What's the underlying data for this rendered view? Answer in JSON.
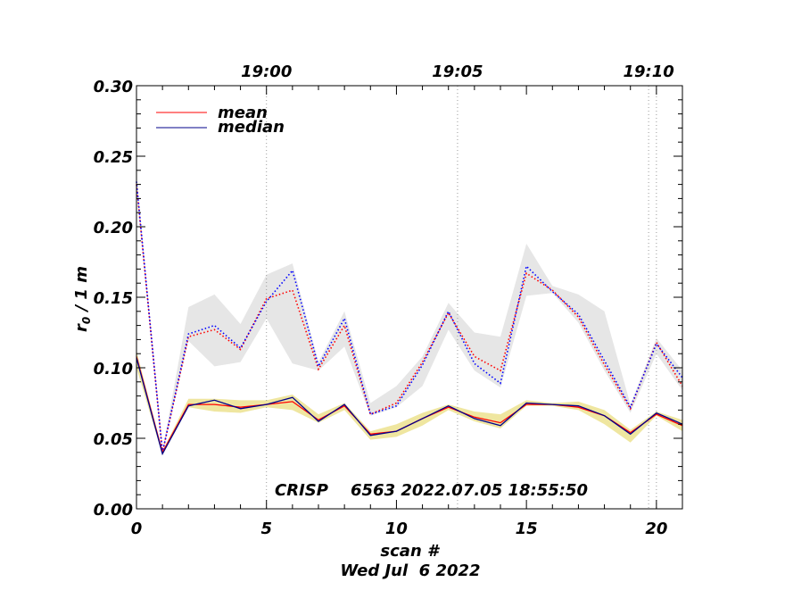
{
  "chart_data": {
    "type": "line",
    "xlabel": "scan #",
    "ylabel_main": "r",
    "ylabel_sub": "0",
    "ylabel_rest": " / 1 m",
    "date_label": "Wed Jul  6 2022",
    "annotation": "CRISP    6563 2022.07.05 18:55:50",
    "xlim": [
      0,
      21
    ],
    "ylim": [
      0,
      0.3
    ],
    "x_ticks": [
      0,
      5,
      10,
      15,
      20
    ],
    "x_tick_labels": [
      "0",
      "5",
      "10",
      "15",
      "20"
    ],
    "y_ticks": [
      0,
      0.05,
      0.1,
      0.15,
      0.2,
      0.25,
      0.3
    ],
    "y_tick_labels": [
      "0.00",
      "0.05",
      "0.10",
      "0.15",
      "0.20",
      "0.25",
      "0.30"
    ],
    "top_axis": {
      "ticks": [
        5,
        12.35,
        19.7
      ],
      "labels": [
        "19:00",
        "19:05",
        "19:10"
      ]
    },
    "legend": {
      "position": "top-left",
      "entries": [
        {
          "label": "mean",
          "color": "#ff0000"
        },
        {
          "label": "median",
          "color": "#00008b"
        }
      ]
    },
    "x": [
      0,
      1,
      2,
      3,
      4,
      5,
      6,
      7,
      8,
      9,
      10,
      11,
      12,
      13,
      14,
      15,
      16,
      17,
      18,
      19,
      20,
      21
    ],
    "series": [
      {
        "group": "upper",
        "stat": "mean",
        "color": "#ff0000",
        "style": "dotted",
        "values": [
          0.23,
          0.04,
          0.122,
          0.127,
          0.113,
          0.149,
          0.155,
          0.099,
          0.13,
          0.067,
          0.075,
          0.104,
          0.139,
          0.108,
          0.098,
          0.167,
          0.155,
          0.136,
          0.102,
          0.071,
          0.118,
          0.087
        ]
      },
      {
        "group": "upper",
        "stat": "median",
        "color": "#0000ff",
        "style": "dotted",
        "values": [
          0.232,
          0.04,
          0.124,
          0.13,
          0.114,
          0.147,
          0.169,
          0.101,
          0.135,
          0.067,
          0.073,
          0.102,
          0.14,
          0.103,
          0.089,
          0.172,
          0.154,
          0.138,
          0.105,
          0.072,
          0.117,
          0.093
        ]
      },
      {
        "group": "lower",
        "stat": "mean",
        "color": "#ff0000",
        "style": "solid",
        "values": [
          0.108,
          0.04,
          0.074,
          0.074,
          0.072,
          0.074,
          0.076,
          0.063,
          0.073,
          0.053,
          0.055,
          0.064,
          0.072,
          0.065,
          0.061,
          0.074,
          0.074,
          0.072,
          0.066,
          0.054,
          0.067,
          0.059
        ]
      },
      {
        "group": "lower",
        "stat": "median",
        "color": "#00008b",
        "style": "solid",
        "values": [
          0.107,
          0.039,
          0.073,
          0.077,
          0.071,
          0.074,
          0.079,
          0.062,
          0.074,
          0.052,
          0.055,
          0.064,
          0.073,
          0.064,
          0.059,
          0.075,
          0.074,
          0.073,
          0.066,
          0.053,
          0.068,
          0.06
        ]
      }
    ],
    "bands": [
      {
        "group": "upper",
        "color": "#e6e6e6",
        "low": [
          0.225,
          0.04,
          0.119,
          0.101,
          0.104,
          0.135,
          0.103,
          0.098,
          0.115,
          0.066,
          0.072,
          0.087,
          0.127,
          0.098,
          0.086,
          0.151,
          0.153,
          0.132,
          0.098,
          0.068,
          0.11,
          0.084
        ],
        "high": [
          0.235,
          0.041,
          0.143,
          0.152,
          0.131,
          0.166,
          0.174,
          0.104,
          0.14,
          0.075,
          0.087,
          0.108,
          0.146,
          0.125,
          0.122,
          0.188,
          0.158,
          0.152,
          0.14,
          0.074,
          0.121,
          0.098
        ]
      },
      {
        "group": "lower",
        "color": "#efe6a0",
        "low": [
          0.1,
          0.038,
          0.072,
          0.069,
          0.068,
          0.072,
          0.07,
          0.061,
          0.07,
          0.049,
          0.051,
          0.059,
          0.07,
          0.062,
          0.057,
          0.073,
          0.073,
          0.07,
          0.06,
          0.047,
          0.066,
          0.055
        ],
        "high": [
          0.112,
          0.041,
          0.078,
          0.078,
          0.077,
          0.077,
          0.081,
          0.067,
          0.075,
          0.055,
          0.06,
          0.068,
          0.074,
          0.069,
          0.067,
          0.077,
          0.075,
          0.076,
          0.07,
          0.056,
          0.069,
          0.063
        ]
      }
    ],
    "vertical_gridlines": [
      5,
      12.35,
      19.7,
      20
    ]
  }
}
